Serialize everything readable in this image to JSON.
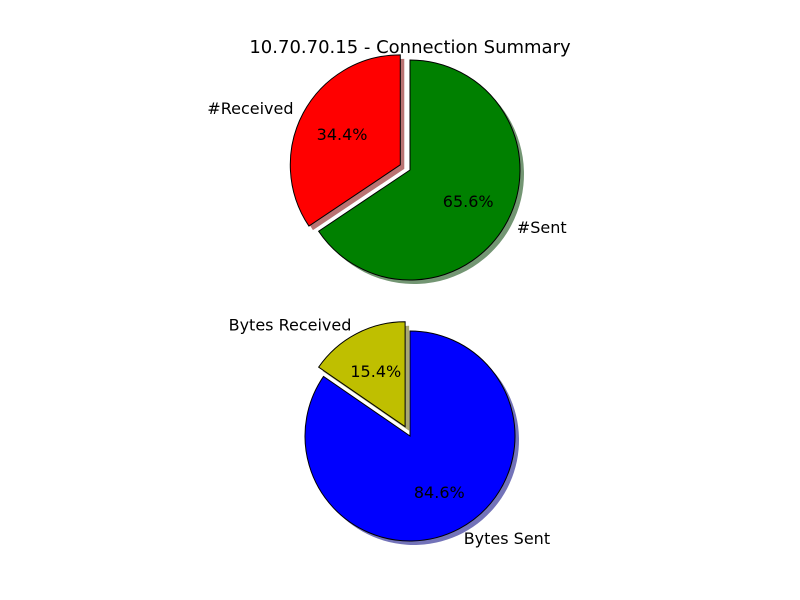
{
  "figure": {
    "title": "10.70.70.15 - Connection Summary"
  },
  "chart_data": [
    {
      "type": "pie",
      "title": "10.70.70.15 - Connection Summary",
      "start_angle_deg": 90,
      "direction": "counterclockwise",
      "shadow": true,
      "slices": [
        {
          "label": "#Received",
          "value": 34.4,
          "pct_label": "34.4%",
          "color": "#ff0000",
          "explode": 0.1
        },
        {
          "label": "#Sent",
          "value": 65.6,
          "pct_label": "65.6%",
          "color": "#008000",
          "explode": 0.0
        }
      ]
    },
    {
      "type": "pie",
      "title": "",
      "start_angle_deg": 90,
      "direction": "counterclockwise",
      "shadow": true,
      "slices": [
        {
          "label": "Bytes Received",
          "value": 15.4,
          "pct_label": "15.4%",
          "color": "#bfbf00",
          "explode": 0.1
        },
        {
          "label": "Bytes Sent",
          "value": 84.6,
          "pct_label": "84.6%",
          "color": "#0000ff",
          "explode": 0.0
        }
      ]
    }
  ]
}
